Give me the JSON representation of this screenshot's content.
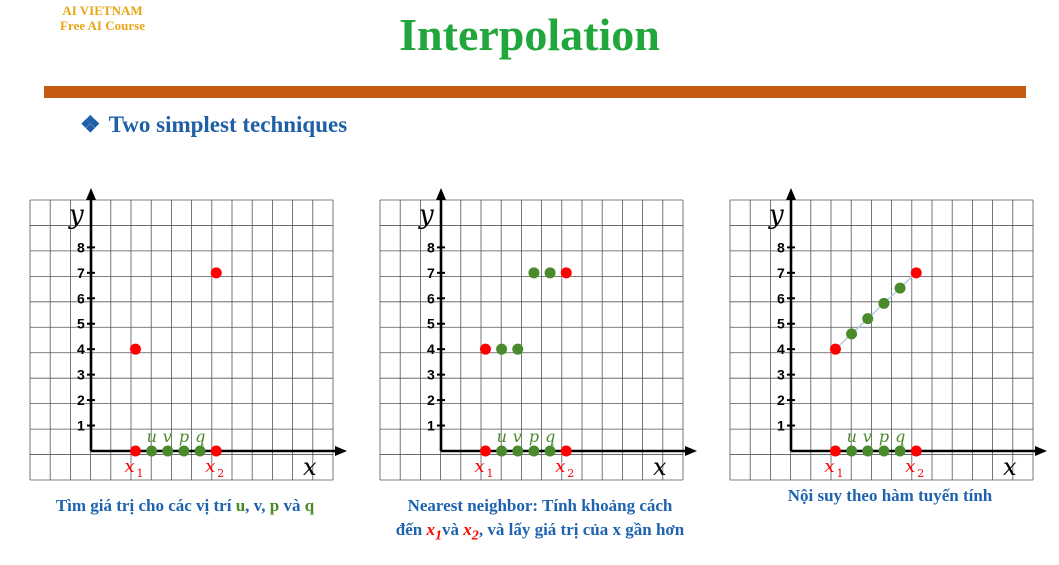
{
  "brand": {
    "line1": "AI VIETNAM",
    "line2": "Free AI Course"
  },
  "title": "Interpolation",
  "subtitle": {
    "bullet": "❖",
    "text": "Two simplest techniques"
  },
  "colors": {
    "title": "#21a63c",
    "brand": "#e8a516",
    "rule": "#c55a11",
    "text": "#1f63b0",
    "known_point": "#ff0000",
    "query_point": "#4a8a2a"
  },
  "axis": {
    "y_label": "y",
    "x_label": "x",
    "y_ticks": [
      1,
      2,
      3,
      4,
      5,
      6,
      7,
      8
    ]
  },
  "labels": {
    "x1": "x",
    "x1_sub": "1",
    "x2": "x",
    "x2_sub": "2",
    "u": "u",
    "v": "v",
    "p": "p",
    "q": "q"
  },
  "chart_data": [
    {
      "type": "scatter",
      "xlim": [
        0,
        10
      ],
      "ylim": [
        0,
        9
      ],
      "known_points": [
        {
          "x": 2.2,
          "y": 4
        },
        {
          "x": 6.2,
          "y": 7
        }
      ],
      "query_points": [
        {
          "name": "u",
          "x": 3.0,
          "y": null
        },
        {
          "name": "v",
          "x": 3.8,
          "y": null
        },
        {
          "name": "p",
          "x": 4.6,
          "y": null
        },
        {
          "name": "q",
          "x": 5.4,
          "y": null
        }
      ],
      "line": false
    },
    {
      "type": "scatter",
      "xlim": [
        0,
        10
      ],
      "ylim": [
        0,
        9
      ],
      "known_points": [
        {
          "x": 2.2,
          "y": 4
        },
        {
          "x": 6.2,
          "y": 7
        }
      ],
      "query_points": [
        {
          "name": "u",
          "x": 3.0,
          "y": 4
        },
        {
          "name": "v",
          "x": 3.8,
          "y": 4
        },
        {
          "name": "p",
          "x": 4.6,
          "y": 7
        },
        {
          "name": "q",
          "x": 5.4,
          "y": 7
        }
      ],
      "line": false
    },
    {
      "type": "line",
      "xlim": [
        0,
        10
      ],
      "ylim": [
        0,
        9
      ],
      "known_points": [
        {
          "x": 2.2,
          "y": 4
        },
        {
          "x": 6.2,
          "y": 7
        }
      ],
      "query_points": [
        {
          "name": "u",
          "x": 3.0,
          "y": 4.6
        },
        {
          "name": "v",
          "x": 3.8,
          "y": 5.2
        },
        {
          "name": "p",
          "x": 4.6,
          "y": 5.8
        },
        {
          "name": "q",
          "x": 5.4,
          "y": 6.4
        }
      ],
      "line": true
    }
  ],
  "captions": {
    "c1": {
      "prefix": "Tìm giá trị cho các vị trí ",
      "u": "u",
      "sep1": ", v, ",
      "p": "p",
      "sep2": " và ",
      "q": "q"
    },
    "c2": {
      "line1": "Nearest neighbor: Tính khoảng cách",
      "l2a": "đến ",
      "x1": "x",
      "x1_sub": "1",
      "l2b": "và ",
      "x2": "x",
      "x2_sub": "2",
      "l2c": ", và lấy giá trị của x gần hơn"
    },
    "c3": "Nội suy theo hàm tuyến tính"
  }
}
